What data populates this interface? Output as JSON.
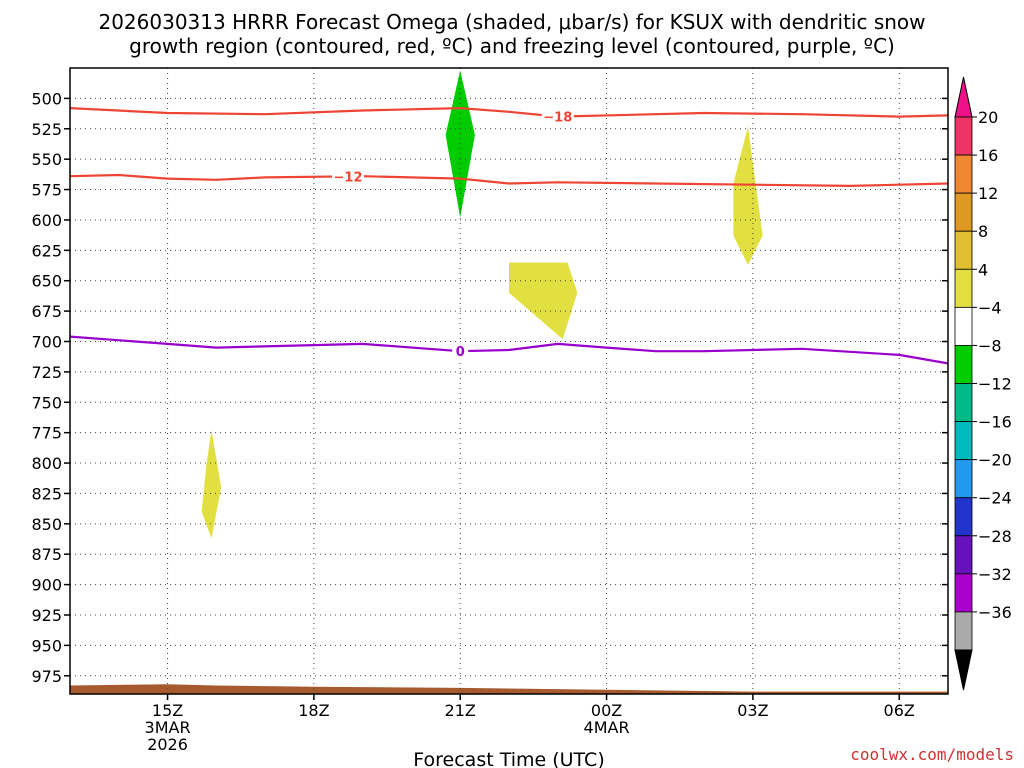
{
  "title": {
    "line1": "2026030313 HRRR Forecast Omega (shaded, μbar/s) for KSUX with dendritic snow",
    "line2": "growth region (contoured, red, ºC) and freezing level (contoured, purple, ºC)"
  },
  "xlabel": "Forecast Time (UTC)",
  "credit": "coolwx.com/models",
  "chart_data": {
    "type": "heatmap",
    "x_axis": {
      "unit": "forecast hour from 2026030313",
      "range": [
        13,
        31
      ],
      "ticks": [
        {
          "hour": 15,
          "lines": [
            "15Z",
            "3MAR",
            "2026"
          ]
        },
        {
          "hour": 18,
          "lines": [
            "18Z"
          ]
        },
        {
          "hour": 21,
          "lines": [
            "21Z"
          ]
        },
        {
          "hour": 24,
          "lines": [
            "00Z",
            "4MAR"
          ]
        },
        {
          "hour": 27,
          "lines": [
            "03Z"
          ]
        },
        {
          "hour": 30,
          "lines": [
            "06Z"
          ]
        }
      ]
    },
    "y_axis": {
      "unit": "hPa",
      "reversed": true,
      "range": [
        475,
        990
      ],
      "ticks": [
        500,
        525,
        550,
        575,
        600,
        625,
        650,
        675,
        700,
        725,
        750,
        775,
        800,
        825,
        850,
        875,
        900,
        925,
        950,
        975
      ]
    },
    "grid": true,
    "colorbar": {
      "labels": [
        20,
        16,
        12,
        8,
        4,
        -4,
        -8,
        -12,
        -16,
        -20,
        -24,
        -28,
        -32,
        -36
      ],
      "colors": [
        "#ee3366",
        "#ee8833",
        "#dd9922",
        "#e0c030",
        "#e2e040",
        "#ffffff",
        "#00cc00",
        "#00bb88",
        "#00bbbb",
        "#2299ee",
        "#2233cc",
        "#6611bb",
        "#aa00cc",
        "#aaaaaa"
      ],
      "top_arrow_color": "#ee1188",
      "bottom_arrow_color": "#000000"
    },
    "omega_regions": [
      {
        "range": "-8 to -4",
        "color": "#00cc00",
        "points": [
          [
            21.0,
            477
          ],
          [
            21.3,
            530
          ],
          [
            21.0,
            598
          ],
          [
            20.7,
            530
          ]
        ]
      },
      {
        "range": "4 to 8",
        "color": "#e2e040",
        "points": [
          [
            26.9,
            523
          ],
          [
            27.2,
            613
          ],
          [
            26.9,
            637
          ],
          [
            26.6,
            613
          ],
          [
            26.6,
            570
          ]
        ]
      },
      {
        "range": "4 to 8",
        "color": "#e2e040",
        "points": [
          [
            22.0,
            635
          ],
          [
            23.2,
            635
          ],
          [
            23.4,
            660
          ],
          [
            23.1,
            698
          ],
          [
            22.0,
            660
          ]
        ]
      },
      {
        "range": "4 to 8",
        "color": "#e2e040",
        "points": [
          [
            15.9,
            773
          ],
          [
            16.1,
            820
          ],
          [
            15.9,
            862
          ],
          [
            15.7,
            840
          ],
          [
            15.8,
            800
          ]
        ]
      }
    ],
    "isotherms": [
      {
        "name": "-18",
        "color": "#ee4433",
        "label_at_hour": 23.0,
        "points": [
          [
            13,
            508
          ],
          [
            15,
            512
          ],
          [
            17,
            513
          ],
          [
            19,
            510
          ],
          [
            21,
            508
          ],
          [
            22,
            511
          ],
          [
            23,
            515
          ],
          [
            25,
            513
          ],
          [
            26,
            512
          ],
          [
            28,
            513
          ],
          [
            30,
            515
          ],
          [
            31,
            514
          ]
        ]
      },
      {
        "name": "-12",
        "color": "#ee4433",
        "label_at_hour": 18.7,
        "points": [
          [
            13,
            564
          ],
          [
            14,
            563
          ],
          [
            15,
            566
          ],
          [
            16,
            567
          ],
          [
            17,
            565
          ],
          [
            19,
            564
          ],
          [
            21,
            566
          ],
          [
            22,
            570
          ],
          [
            23,
            569
          ],
          [
            25,
            570
          ],
          [
            27,
            571
          ],
          [
            29,
            572
          ],
          [
            30,
            571
          ],
          [
            31,
            570
          ]
        ]
      },
      {
        "name": "0",
        "color": "#9900cc",
        "label_at_hour": 21.0,
        "points": [
          [
            13,
            696
          ],
          [
            15,
            702
          ],
          [
            16,
            705
          ],
          [
            18,
            703
          ],
          [
            19,
            702
          ],
          [
            21,
            708
          ],
          [
            22,
            707
          ],
          [
            23,
            702
          ],
          [
            24,
            705
          ],
          [
            25,
            708
          ],
          [
            26,
            708
          ],
          [
            28,
            706
          ],
          [
            30,
            711
          ],
          [
            31,
            718
          ]
        ]
      }
    ],
    "terrain": {
      "color": "#a65a2e",
      "points": [
        [
          13,
          983
        ],
        [
          15,
          982
        ],
        [
          16,
          983
        ],
        [
          18,
          984
        ],
        [
          21,
          985
        ],
        [
          23,
          986
        ],
        [
          25,
          987
        ],
        [
          27,
          988
        ],
        [
          31,
          988
        ]
      ]
    }
  }
}
